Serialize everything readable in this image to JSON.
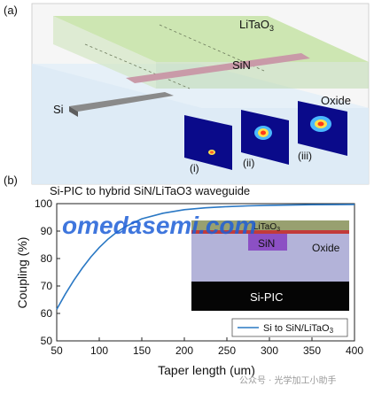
{
  "panel_a": {
    "label": "(a)",
    "layers": {
      "top": "LiTaO",
      "top_sub": "3",
      "middle": "SiN",
      "substrate": "Oxide",
      "waveguide": "Si"
    },
    "mode_labels": [
      "(i)",
      "(ii)",
      "(iii)"
    ]
  },
  "panel_b": {
    "label": "(b)",
    "inset": {
      "top_label": "LiTaO",
      "top_sub": "3",
      "core_label": "SiN",
      "cladding_label": "Oxide",
      "base_label": "Si-PIC"
    }
  },
  "watermark": {
    "main": "omedasemi.com",
    "corner": "公众号 · 光学加工小助手"
  },
  "colors": {
    "curve": "#2a78c4",
    "litao3": "#c6e3a6",
    "sin": "#c99aa8",
    "oxide": "#dbeaf6",
    "si": "#7d7d7d",
    "watermark": "#1e5fd8"
  },
  "chart_data": {
    "type": "line",
    "title": "Si-PIC to hybrid SiN/LiTaO3 waveguide",
    "xlabel": "Taper length (um)",
    "ylabel": "Coupling (%)",
    "xlim": [
      50,
      400
    ],
    "ylim": [
      50,
      100
    ],
    "xticks": [
      "50",
      "100",
      "150",
      "200",
      "250",
      "300",
      "350",
      "400"
    ],
    "yticks": [
      "50",
      "60",
      "70",
      "80",
      "90",
      "100"
    ],
    "grid": false,
    "legend_position": "bottom-right",
    "series": [
      {
        "name": "Si to SiN/LiTaO3",
        "x": [
          50,
          60,
          70,
          80,
          90,
          100,
          110,
          120,
          130,
          140,
          150,
          175,
          200,
          225,
          250,
          275,
          300,
          350,
          400
        ],
        "y": [
          61.5,
          67,
          72,
          76.5,
          80.5,
          84,
          87,
          89.5,
          91.5,
          93,
          94.5,
          96.5,
          97.8,
          98.5,
          98.9,
          99.2,
          99.4,
          99.6,
          99.7
        ]
      }
    ]
  }
}
